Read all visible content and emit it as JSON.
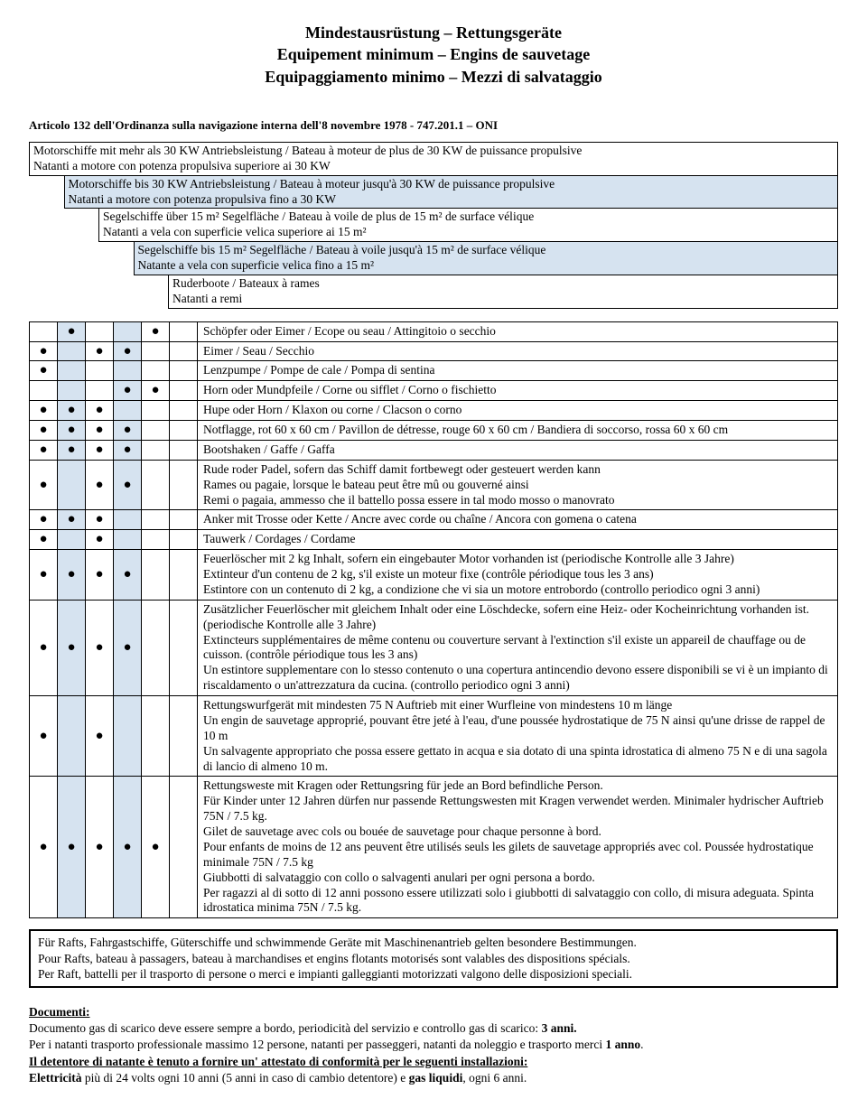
{
  "title": {
    "de": "Mindestausrüstung – Rettungsgeräte",
    "fr": "Equipement minimum – Engins de sauvetage",
    "it": "Equipaggiamento minimo – Mezzi di salvataggio"
  },
  "article": "Articolo 132 dell'Ordinanza sulla navigazione interna dell'8 novembre 1978 - 747.201.1 – ONI",
  "cat": {
    "r0a": "Motorschiffe mit mehr als 30 KW Antriebsleistung / Bateau à moteur de plus de 30 KW de puissance propulsive",
    "r0b": "Natanti a motore con potenza propulsiva superiore ai 30 KW",
    "r1a": "Motorschiffe bis 30 KW Antriebsleistung / Bateau à moteur jusqu'à 30 KW de puissance propulsive",
    "r1b": "Natanti a motore con potenza propulsiva fino a 30 KW",
    "r2a": "Segelschiffe über 15 m² Segelfläche / Bateau à voile de plus de 15 m² de surface vélique",
    "r2b": "Natanti a vela con superficie velica superiore ai 15 m²",
    "r3a": "Segelschiffe bis 15 m² Segelfläche / Bateau à voile jusqu'à 15 m² de surface vélique",
    "r3b": "Natante a vela con superficie velica fino a 15 m²",
    "r4a": "Ruderboote / Bateaux à rames",
    "r4b": "Natanti a remi"
  },
  "items": [
    {
      "dots": [
        false,
        true,
        false,
        false,
        true
      ],
      "text": "Schöpfer oder Eimer / Ecope ou seau / Attingitoio o secchio"
    },
    {
      "dots": [
        true,
        false,
        true,
        true,
        false
      ],
      "text": "Eimer / Seau / Secchio"
    },
    {
      "dots": [
        true,
        false,
        false,
        false,
        false
      ],
      "text": "Lenzpumpe / Pompe de cale / Pompa di sentina"
    },
    {
      "dots": [
        false,
        false,
        false,
        true,
        true
      ],
      "text": "Horn oder Mundpfeile / Corne ou sifflet / Corno o fischietto"
    },
    {
      "dots": [
        true,
        true,
        true,
        false,
        false
      ],
      "text": "Hupe oder Horn / Klaxon ou corne / Clacson o corno"
    },
    {
      "dots": [
        true,
        true,
        true,
        true,
        false
      ],
      "text": "Notflagge, rot 60 x 60 cm / Pavillon de détresse, rouge 60 x 60 cm / Bandiera di soccorso, rossa 60 x 60 cm"
    },
    {
      "dots": [
        true,
        true,
        true,
        true,
        false
      ],
      "text": "Bootshaken / Gaffe / Gaffa"
    },
    {
      "dots": [
        true,
        false,
        true,
        true,
        false
      ],
      "text": "Rude roder Padel, sofern das Schiff damit fortbewegt oder gesteuert werden kann\nRames ou pagaie, lorsque le bateau peut être mû ou gouverné ainsi\nRemi o pagaia, ammesso che il battello possa essere in tal modo mosso o manovrato"
    },
    {
      "dots": [
        true,
        true,
        true,
        false,
        false
      ],
      "text": "Anker mit Trosse oder Kette / Ancre avec corde ou chaîne / Ancora con gomena o catena"
    },
    {
      "dots": [
        true,
        false,
        true,
        false,
        false
      ],
      "text": "Tauwerk / Cordages / Cordame"
    },
    {
      "dots": [
        true,
        true,
        true,
        true,
        false
      ],
      "text": "Feuerlöscher mit 2 kg Inhalt, sofern ein eingebauter Motor vorhanden ist (periodische Kontrolle alle 3 Jahre)\nExtinteur d'un contenu de 2 kg, s'il existe un moteur fixe (contrôle périodique tous les 3 ans)\nEstintore con un contenuto di 2 kg, a condizione che vi sia un motore entrobordo (controllo periodico ogni 3 anni)"
    },
    {
      "dots": [
        true,
        true,
        true,
        true,
        false
      ],
      "text": "Zusätzlicher Feuerlöscher mit gleichem Inhalt oder eine Löschdecke, sofern eine Heiz- oder Kocheinrichtung vorhanden ist. (periodische Kontrolle alle 3 Jahre)\nExtincteurs supplémentaires de même contenu ou couverture servant à l'extinction s'il existe un appareil de chauffage ou de cuisson. (contrôle périodique tous les 3 ans)\nUn estintore supplementare con lo stesso contenuto o una copertura antincendio devono essere disponibili se vi è un impianto di riscaldamento o un'attrezzatura da cucina. (controllo periodico ogni 3 anni)"
    },
    {
      "dots": [
        true,
        false,
        true,
        false,
        false
      ],
      "text": "Rettungswurfgerät mit mindesten 75 N Auftrieb mit einer Wurfleine von mindestens 10 m länge\nUn engin de sauvetage approprié, pouvant être jeté à l'eau, d'une poussée hydrostatique de 75 N ainsi qu'une drisse de rappel de 10 m\nUn salvagente appropriato che possa essere gettato in acqua e sia dotato di una spinta idrostatica di almeno 75 N e di una sagola di lancio di almeno 10 m."
    },
    {
      "dots": [
        true,
        true,
        true,
        true,
        true
      ],
      "text": "Rettungsweste mit Kragen oder Rettungsring für jede an Bord befindliche Person.\nFür Kinder unter 12 Jahren dürfen nur passende Rettungswesten mit Kragen verwendet werden. Minimaler hydrischer Auftrieb 75N / 7.5 kg.\nGilet de sauvetage avec cols ou bouée de sauvetage pour chaque personne à bord.\nPour enfants de moins de 12 ans peuvent être utilisés seuls les gilets de sauvetage appropriés avec col. Poussée hydrostatique minimale 75N / 7.5 kg\nGiubbotti di salvataggio con collo o salvagenti anulari per ogni persona a bordo.\nPer ragazzi al di sotto di 12 anni possono essere utilizzati solo i giubbotti di salvataggio con collo, di misura adeguata. Spinta idrostatica minima 75N / 7.5 kg."
    }
  ],
  "noteBox": [
    "Für Rafts, Fahrgastschiffe, Güterschiffe und schwimmende Geräte mit Maschinenantrieb gelten besondere Bestimmungen.",
    "Pour Rafts, bateau à passagers, bateau à marchandises et engins flotants motorisés sont valables des dispositions spécials.",
    "Per Raft, battelli per il trasporto di persone o merci e impianti galleggianti motorizzati valgono delle disposizioni speciali."
  ],
  "docu": {
    "heading": "Documenti:",
    "l1a": "Documento gas di scarico deve essere sempre a bordo, periodicità del servizio e controllo gas di scarico: ",
    "l1b": "3 anni.",
    "l2a": "Per i natanti trasporto professionale massimo 12 persone, natanti per passeggeri, natanti da noleggio e trasporto merci ",
    "l2b": "1 anno",
    "l2c": ".",
    "l3": "Il detentore di natante è tenuto a fornire un' attestato di conformità per le seguenti installazioni:",
    "l4a": "Elettricità",
    "l4b": " più di 24 volts ogni 10 anni (5 anni in caso di cambio detentore) e ",
    "l4c": "gas liquidi",
    "l4d": ", ogni 6 anni."
  }
}
